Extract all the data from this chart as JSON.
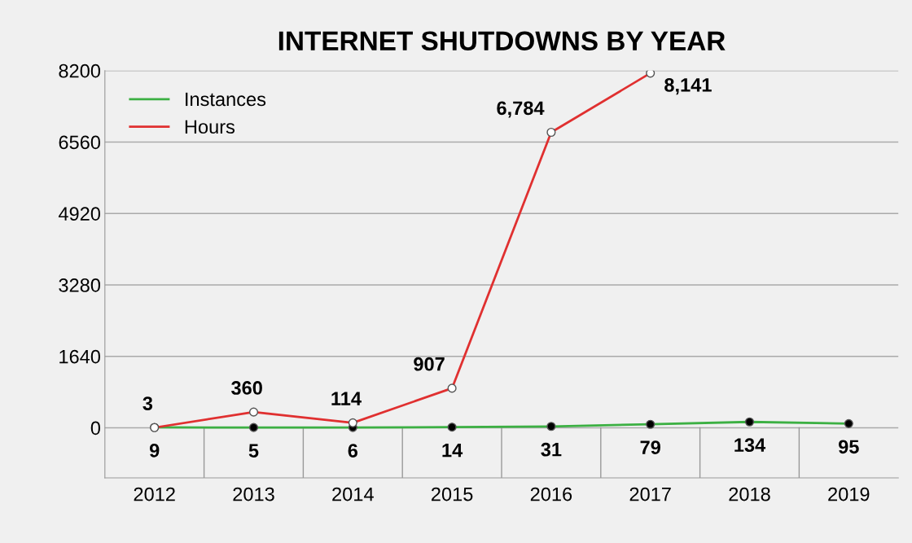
{
  "chart_data": {
    "type": "line",
    "title": "INTERNET SHUTDOWNS BY YEAR",
    "categories": [
      "2012",
      "2013",
      "2014",
      "2015",
      "2016",
      "2017",
      "2018",
      "2019"
    ],
    "series": [
      {
        "name": "Instances",
        "color": "#3cb043",
        "values": [
          9,
          5,
          6,
          14,
          31,
          79,
          134,
          95
        ],
        "value_labels": [
          "9",
          "5",
          "6",
          "14",
          "31",
          "79",
          "134",
          "95"
        ]
      },
      {
        "name": "Hours",
        "color": "#e03030",
        "values": [
          3,
          360,
          114,
          907,
          6784,
          8141,
          null,
          null
        ],
        "value_labels": [
          "3",
          "360",
          "114",
          "907",
          "6,784",
          "8,141",
          null,
          null
        ]
      }
    ],
    "ylim": [
      -1150,
      8200
    ],
    "yticks": [
      0,
      1640,
      3280,
      4920,
      6560,
      8200
    ],
    "grid": "y",
    "legend": "top left",
    "marker": "circle"
  }
}
